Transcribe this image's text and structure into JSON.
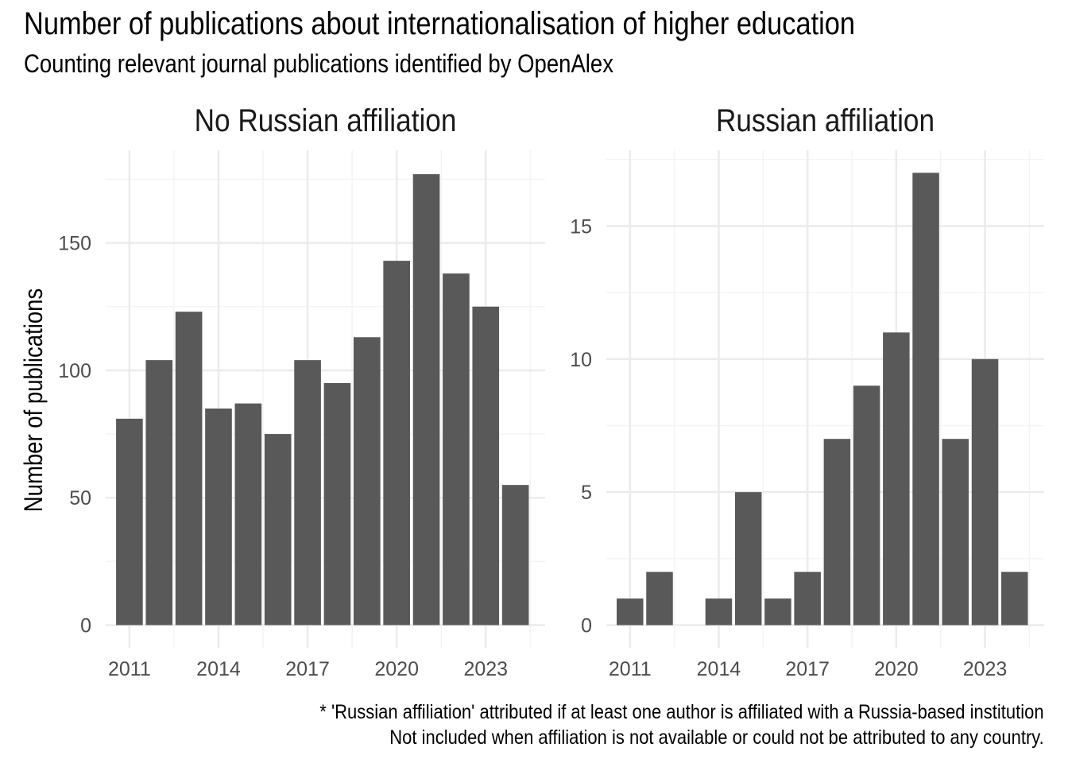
{
  "title": "Number of publications about internationalisation of higher education",
  "subtitle": "Counting relevant journal publications identified by OpenAlex",
  "ylabel": "Number of publications",
  "caption_line1": "* 'Russian affiliation' attributed if at least one author is affiliated with a Russia-based institution",
  "caption_line2": "Not included when affiliation is not available or could not be attributed to any country.",
  "colors": {
    "bar": "#595959",
    "grid_major": "#ebebeb",
    "grid_minor": "#f4f4f4",
    "tick_text": "#4d4d4d"
  },
  "chart_data": [
    {
      "type": "bar",
      "title": "No Russian affiliation",
      "x": [
        2011,
        2012,
        2013,
        2014,
        2015,
        2016,
        2017,
        2018,
        2019,
        2020,
        2021,
        2022,
        2023,
        2024
      ],
      "values": [
        81,
        104,
        123,
        85,
        87,
        75,
        104,
        95,
        113,
        143,
        177,
        138,
        125,
        55
      ],
      "xticks": [
        "2011",
        "2014",
        "2017",
        "2020",
        "2023"
      ],
      "yticks": [
        "0",
        "50",
        "100",
        "150"
      ],
      "xlim": [
        2010.2,
        2025.0
      ],
      "ylim": [
        -8.9,
        186.4
      ],
      "grid": true
    },
    {
      "type": "bar",
      "title": "Russian affiliation",
      "x": [
        2011,
        2012,
        2013,
        2014,
        2015,
        2016,
        2017,
        2018,
        2019,
        2020,
        2021,
        2022,
        2023,
        2024
      ],
      "values": [
        1,
        2,
        0,
        1,
        5,
        1,
        2,
        7,
        9,
        11,
        17,
        7,
        10,
        2
      ],
      "xticks": [
        "2011",
        "2014",
        "2017",
        "2020",
        "2023"
      ],
      "yticks": [
        "0",
        "5",
        "10",
        "15"
      ],
      "xlim": [
        2010.2,
        2025.0
      ],
      "ylim": [
        -0.85,
        17.85
      ],
      "grid": true
    }
  ]
}
